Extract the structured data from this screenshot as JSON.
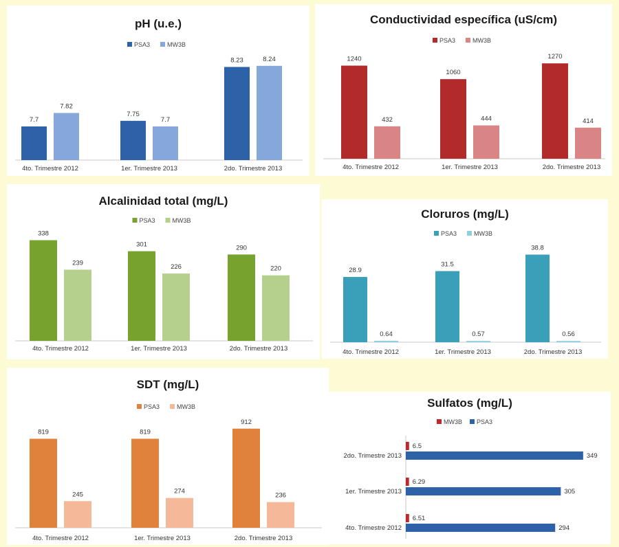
{
  "chart_data": [
    {
      "id": "ph",
      "type": "bar",
      "title": "pH (u.e.)",
      "categories": [
        "4to. Trimestre 2012",
        "1er. Trimestre 2013",
        "2do. Trimestre 2013"
      ],
      "series": [
        {
          "name": "PSA3",
          "values": [
            7.7,
            7.75,
            8.23
          ],
          "labels": [
            "7.7",
            "7.75",
            "8.23"
          ],
          "color": "#2e62a8"
        },
        {
          "name": "MW3B",
          "values": [
            7.82,
            7.7,
            8.24
          ],
          "labels": [
            "7.82",
            "7.7",
            "8.24"
          ],
          "color": "#86a7d9"
        }
      ],
      "ylim": [
        7.4,
        8.3
      ]
    },
    {
      "id": "cond",
      "type": "bar",
      "title": "Conductividad específica  (uS/cm)",
      "categories": [
        "4to. Trimestre 2012",
        "1er. Trimestre 2013",
        "2do. Trimestre 2013"
      ],
      "series": [
        {
          "name": "PSA3",
          "values": [
            1240,
            1060,
            1270
          ],
          "labels": [
            "1240",
            "1060",
            "1270"
          ],
          "color": "#b32a2a"
        },
        {
          "name": "MW3B",
          "values": [
            432,
            444,
            414
          ],
          "labels": [
            "432",
            "444",
            "414"
          ],
          "color": "#d98585"
        }
      ],
      "ylim": [
        0,
        1400
      ]
    },
    {
      "id": "alc",
      "type": "bar",
      "title": "Alcalinidad total (mg/L)",
      "categories": [
        "4to. Trimestre 2012",
        "1er. Trimestre 2013",
        "2do. Trimestre 2013"
      ],
      "series": [
        {
          "name": "PSA3",
          "values": [
            338,
            301,
            290
          ],
          "labels": [
            "338",
            "301",
            "290"
          ],
          "color": "#77a22e"
        },
        {
          "name": "MW3B",
          "values": [
            239,
            226,
            220
          ],
          "labels": [
            "239",
            "226",
            "220"
          ],
          "color": "#b5d08c"
        }
      ],
      "ylim": [
        0,
        360
      ]
    },
    {
      "id": "clo",
      "type": "bar",
      "title": "Cloruros (mg/L)",
      "categories": [
        "4to. Trimestre 2012",
        "1er. Trimestre 2013",
        "2do. Trimestre 2013"
      ],
      "series": [
        {
          "name": "PSA3",
          "values": [
            28.9,
            31.5,
            38.8
          ],
          "labels": [
            "28.9",
            "31.5",
            "38.8"
          ],
          "color": "#3a9fb8"
        },
        {
          "name": "MW3B",
          "values": [
            0.64,
            0.57,
            0.56
          ],
          "labels": [
            "0.64",
            "0.57",
            "0.56"
          ],
          "color": "#8fd0df"
        }
      ],
      "ylim": [
        0,
        42
      ]
    },
    {
      "id": "sdt",
      "type": "bar",
      "title": "SDT (mg/L)",
      "categories": [
        "4to. Trimestre 2012",
        "1er. Trimestre 2013",
        "2do. Trimestre 2013"
      ],
      "series": [
        {
          "name": "PSA3",
          "values": [
            819,
            819,
            912
          ],
          "labels": [
            "819",
            "819",
            "912"
          ],
          "color": "#e0813c"
        },
        {
          "name": "MW3B",
          "values": [
            245,
            274,
            236
          ],
          "labels": [
            "245",
            "274",
            "236"
          ],
          "color": "#f5b999"
        }
      ],
      "ylim": [
        0,
        980
      ]
    },
    {
      "id": "sul",
      "type": "bar-horizontal",
      "title": "Sulfatos (mg/L)",
      "categories": [
        "2do. Trimestre 2013",
        "1er. Trimestre 2013",
        "4to. Trimestre 2012"
      ],
      "series": [
        {
          "name": "MW3B",
          "values": [
            6.5,
            6.29,
            6.51
          ],
          "labels": [
            "6.5",
            "6.29",
            "6.51"
          ],
          "color": "#c0292b"
        },
        {
          "name": "PSA3",
          "values": [
            349,
            305,
            294
          ],
          "labels": [
            "349",
            "305",
            "294"
          ],
          "color": "#2e62a8"
        }
      ],
      "xlim": [
        0,
        360
      ]
    }
  ]
}
